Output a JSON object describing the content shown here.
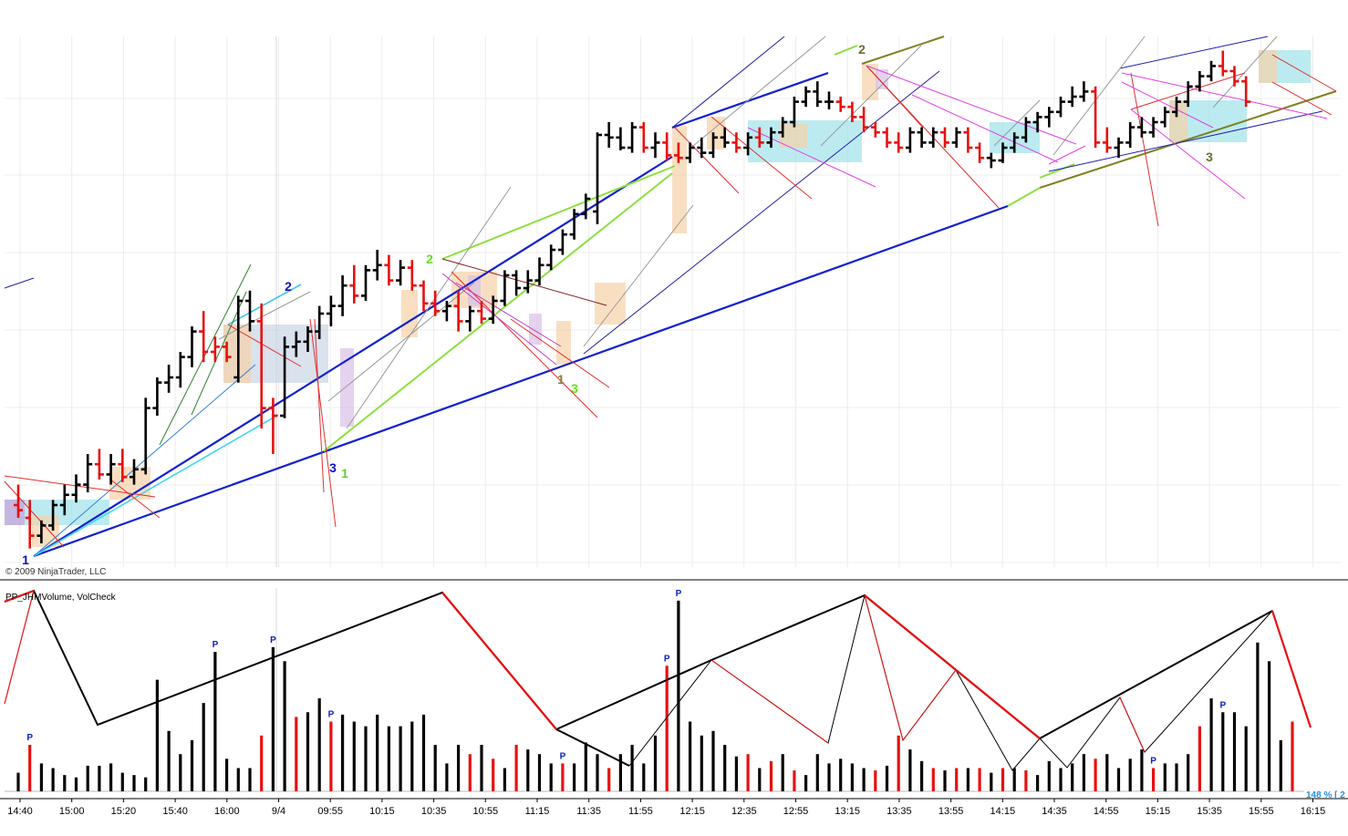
{
  "copyright": "© 2009 NinjaTrader, LLC",
  "indicator_label": "PP_JHMVolume, VolCheck",
  "zoom_label": "148 % [ 2",
  "pivot_labels": [
    {
      "text": "1",
      "color": "#1010c0"
    },
    {
      "text": "2",
      "color": "#1010c0"
    },
    {
      "text": "3",
      "color": "#1010c0"
    },
    {
      "text": "1",
      "color": "#66cc33"
    },
    {
      "text": "2",
      "color": "#66dd22"
    },
    {
      "text": "3",
      "color": "#66dd22"
    },
    {
      "text": "1",
      "color": "#808040"
    },
    {
      "text": "2",
      "color": "#6b6b35"
    },
    {
      "text": "3",
      "color": "#6b6b35"
    }
  ],
  "volume_marker": "P",
  "chart_data": {
    "type": "bar",
    "x_axis_labels": [
      "14:40",
      "15:00",
      "15:20",
      "15:40",
      "16:00",
      "9/4",
      "09:55",
      "10:15",
      "10:35",
      "10:55",
      "11:15",
      "11:35",
      "11:55",
      "12:15",
      "12:35",
      "12:55",
      "13:15",
      "13:35",
      "13:55",
      "14:15",
      "14:35",
      "14:55",
      "15:15",
      "15:35",
      "15:55",
      "16:15",
      "16:"
    ],
    "price_bars": [
      {
        "o": 20,
        "h": 28,
        "l": 15,
        "c": 18,
        "col": "r"
      },
      {
        "o": 15,
        "h": 22,
        "l": 3,
        "c": 8,
        "col": "r"
      },
      {
        "o": 8,
        "h": 14,
        "l": 5,
        "c": 12,
        "col": "k"
      },
      {
        "o": 12,
        "h": 22,
        "l": 10,
        "c": 20,
        "col": "k"
      },
      {
        "o": 20,
        "h": 28,
        "l": 16,
        "c": 24,
        "col": "k"
      },
      {
        "o": 24,
        "h": 32,
        "l": 21,
        "c": 28,
        "col": "k"
      },
      {
        "o": 28,
        "h": 40,
        "l": 25,
        "c": 36,
        "col": "k"
      },
      {
        "o": 36,
        "h": 42,
        "l": 30,
        "c": 32,
        "col": "r"
      },
      {
        "o": 32,
        "h": 40,
        "l": 28,
        "c": 36,
        "col": "k"
      },
      {
        "o": 36,
        "h": 42,
        "l": 29,
        "c": 31,
        "col": "r"
      },
      {
        "o": 31,
        "h": 38,
        "l": 28,
        "c": 34,
        "col": "k"
      },
      {
        "o": 34,
        "h": 62,
        "l": 32,
        "c": 58,
        "col": "k"
      },
      {
        "o": 58,
        "h": 70,
        "l": 55,
        "c": 68,
        "col": "k"
      },
      {
        "o": 68,
        "h": 75,
        "l": 64,
        "c": 70,
        "col": "k"
      },
      {
        "o": 70,
        "h": 80,
        "l": 66,
        "c": 78,
        "col": "k"
      },
      {
        "o": 78,
        "h": 90,
        "l": 74,
        "c": 88,
        "col": "k"
      },
      {
        "o": 88,
        "h": 96,
        "l": 76,
        "c": 80,
        "col": "r"
      },
      {
        "o": 80,
        "h": 86,
        "l": 76,
        "c": 82,
        "col": "r"
      },
      {
        "o": 82,
        "h": 84,
        "l": 76,
        "c": 78,
        "col": "r"
      },
      {
        "o": 70,
        "h": 102,
        "l": 68,
        "c": 100,
        "col": "k"
      },
      {
        "o": 100,
        "h": 104,
        "l": 88,
        "c": 92,
        "col": "k"
      },
      {
        "o": 92,
        "h": 99,
        "l": 50,
        "c": 58,
        "col": "r"
      },
      {
        "o": 58,
        "h": 62,
        "l": 40,
        "c": 55,
        "col": "r"
      },
      {
        "o": 55,
        "h": 86,
        "l": 54,
        "c": 82,
        "col": "k"
      },
      {
        "o": 82,
        "h": 88,
        "l": 78,
        "c": 84,
        "col": "k"
      },
      {
        "o": 84,
        "h": 90,
        "l": 80,
        "c": 88,
        "col": "k"
      },
      {
        "o": 88,
        "h": 98,
        "l": 85,
        "c": 95,
        "col": "k"
      },
      {
        "o": 95,
        "h": 102,
        "l": 90,
        "c": 98,
        "col": "k"
      },
      {
        "o": 98,
        "h": 110,
        "l": 94,
        "c": 106,
        "col": "k"
      },
      {
        "o": 106,
        "h": 114,
        "l": 99,
        "c": 102,
        "col": "r"
      },
      {
        "o": 102,
        "h": 114,
        "l": 100,
        "c": 112,
        "col": "k"
      },
      {
        "o": 112,
        "h": 120,
        "l": 108,
        "c": 114,
        "col": "k"
      },
      {
        "o": 114,
        "h": 118,
        "l": 106,
        "c": 108,
        "col": "r"
      },
      {
        "o": 108,
        "h": 116,
        "l": 106,
        "c": 113,
        "col": "k"
      },
      {
        "o": 113,
        "h": 116,
        "l": 104,
        "c": 106,
        "col": "r"
      },
      {
        "o": 106,
        "h": 108,
        "l": 96,
        "c": 99,
        "col": "r"
      },
      {
        "o": 99,
        "h": 104,
        "l": 94,
        "c": 96,
        "col": "r"
      },
      {
        "o": 96,
        "h": 100,
        "l": 92,
        "c": 98,
        "col": "k"
      },
      {
        "o": 98,
        "h": 104,
        "l": 88,
        "c": 92,
        "col": "r"
      },
      {
        "o": 92,
        "h": 98,
        "l": 88,
        "c": 96,
        "col": "k"
      },
      {
        "o": 96,
        "h": 100,
        "l": 91,
        "c": 93,
        "col": "r"
      },
      {
        "o": 93,
        "h": 102,
        "l": 91,
        "c": 100,
        "col": "k"
      },
      {
        "o": 100,
        "h": 112,
        "l": 98,
        "c": 110,
        "col": "k"
      },
      {
        "o": 110,
        "h": 112,
        "l": 102,
        "c": 105,
        "col": "k"
      },
      {
        "o": 105,
        "h": 112,
        "l": 103,
        "c": 108,
        "col": "k"
      },
      {
        "o": 108,
        "h": 117,
        "l": 106,
        "c": 114,
        "col": "k"
      },
      {
        "o": 114,
        "h": 122,
        "l": 112,
        "c": 120,
        "col": "k"
      },
      {
        "o": 120,
        "h": 128,
        "l": 118,
        "c": 126,
        "col": "k"
      },
      {
        "o": 126,
        "h": 136,
        "l": 124,
        "c": 134,
        "col": "k"
      },
      {
        "o": 134,
        "h": 142,
        "l": 132,
        "c": 140,
        "col": "k"
      },
      {
        "o": 135,
        "h": 166,
        "l": 130,
        "c": 165,
        "col": "k"
      },
      {
        "o": 165,
        "h": 170,
        "l": 160,
        "c": 164,
        "col": "k"
      },
      {
        "o": 164,
        "h": 168,
        "l": 159,
        "c": 160,
        "col": "k"
      },
      {
        "o": 160,
        "h": 170,
        "l": 158,
        "c": 168,
        "col": "k"
      },
      {
        "o": 168,
        "h": 170,
        "l": 158,
        "c": 160,
        "col": "r"
      },
      {
        "o": 160,
        "h": 166,
        "l": 156,
        "c": 162,
        "col": "k"
      },
      {
        "o": 162,
        "h": 166,
        "l": 155,
        "c": 157,
        "col": "r"
      },
      {
        "o": 157,
        "h": 162,
        "l": 154,
        "c": 156,
        "col": "r"
      },
      {
        "o": 156,
        "h": 162,
        "l": 154,
        "c": 160,
        "col": "k"
      },
      {
        "o": 160,
        "h": 164,
        "l": 156,
        "c": 158,
        "col": "k"
      },
      {
        "o": 158,
        "h": 166,
        "l": 156,
        "c": 164,
        "col": "k"
      },
      {
        "o": 164,
        "h": 168,
        "l": 160,
        "c": 162,
        "col": "k"
      },
      {
        "o": 162,
        "h": 166,
        "l": 158,
        "c": 160,
        "col": "r"
      },
      {
        "o": 160,
        "h": 166,
        "l": 157,
        "c": 164,
        "col": "k"
      },
      {
        "o": 164,
        "h": 168,
        "l": 160,
        "c": 162,
        "col": "r"
      },
      {
        "o": 162,
        "h": 168,
        "l": 160,
        "c": 166,
        "col": "k"
      },
      {
        "o": 166,
        "h": 172,
        "l": 164,
        "c": 170,
        "col": "k"
      },
      {
        "o": 170,
        "h": 180,
        "l": 168,
        "c": 178,
        "col": "k"
      },
      {
        "o": 178,
        "h": 184,
        "l": 176,
        "c": 182,
        "col": "k"
      },
      {
        "o": 182,
        "h": 186,
        "l": 176,
        "c": 178,
        "col": "k"
      },
      {
        "o": 178,
        "h": 182,
        "l": 175,
        "c": 178,
        "col": "k"
      },
      {
        "o": 178,
        "h": 180,
        "l": 174,
        "c": 176,
        "col": "r"
      },
      {
        "o": 176,
        "h": 178,
        "l": 170,
        "c": 172,
        "col": "r"
      },
      {
        "o": 172,
        "h": 176,
        "l": 166,
        "c": 168,
        "col": "r"
      },
      {
        "o": 168,
        "h": 170,
        "l": 164,
        "c": 166,
        "col": "r"
      },
      {
        "o": 166,
        "h": 168,
        "l": 160,
        "c": 162,
        "col": "r"
      },
      {
        "o": 162,
        "h": 166,
        "l": 158,
        "c": 160,
        "col": "r"
      },
      {
        "o": 160,
        "h": 168,
        "l": 158,
        "c": 166,
        "col": "k"
      },
      {
        "o": 166,
        "h": 168,
        "l": 160,
        "c": 162,
        "col": "k"
      },
      {
        "o": 162,
        "h": 168,
        "l": 160,
        "c": 166,
        "col": "k"
      },
      {
        "o": 166,
        "h": 168,
        "l": 160,
        "c": 162,
        "col": "r"
      },
      {
        "o": 162,
        "h": 168,
        "l": 160,
        "c": 166,
        "col": "k"
      },
      {
        "o": 166,
        "h": 168,
        "l": 158,
        "c": 160,
        "col": "r"
      },
      {
        "o": 160,
        "h": 162,
        "l": 154,
        "c": 156,
        "col": "r"
      },
      {
        "o": 156,
        "h": 158,
        "l": 152,
        "c": 155,
        "col": "k"
      },
      {
        "o": 155,
        "h": 162,
        "l": 154,
        "c": 160,
        "col": "k"
      },
      {
        "o": 160,
        "h": 166,
        "l": 158,
        "c": 164,
        "col": "k"
      },
      {
        "o": 164,
        "h": 172,
        "l": 162,
        "c": 170,
        "col": "k"
      },
      {
        "o": 170,
        "h": 174,
        "l": 166,
        "c": 172,
        "col": "k"
      },
      {
        "o": 172,
        "h": 176,
        "l": 168,
        "c": 174,
        "col": "k"
      },
      {
        "o": 174,
        "h": 180,
        "l": 172,
        "c": 178,
        "col": "k"
      },
      {
        "o": 178,
        "h": 184,
        "l": 176,
        "c": 180,
        "col": "k"
      },
      {
        "o": 180,
        "h": 186,
        "l": 178,
        "c": 182,
        "col": "k"
      },
      {
        "o": 182,
        "h": 184,
        "l": 160,
        "c": 162,
        "col": "r"
      },
      {
        "o": 162,
        "h": 168,
        "l": 158,
        "c": 160,
        "col": "r"
      },
      {
        "o": 160,
        "h": 164,
        "l": 156,
        "c": 162,
        "col": "k"
      },
      {
        "o": 162,
        "h": 170,
        "l": 160,
        "c": 168,
        "col": "k"
      },
      {
        "o": 168,
        "h": 172,
        "l": 164,
        "c": 166,
        "col": "k"
      },
      {
        "o": 166,
        "h": 172,
        "l": 164,
        "c": 170,
        "col": "k"
      },
      {
        "o": 170,
        "h": 176,
        "l": 168,
        "c": 174,
        "col": "k"
      },
      {
        "o": 174,
        "h": 180,
        "l": 172,
        "c": 178,
        "col": "k"
      },
      {
        "o": 178,
        "h": 186,
        "l": 176,
        "c": 184,
        "col": "k"
      },
      {
        "o": 184,
        "h": 190,
        "l": 182,
        "c": 188,
        "col": "k"
      },
      {
        "o": 188,
        "h": 194,
        "l": 186,
        "c": 192,
        "col": "k"
      },
      {
        "o": 192,
        "h": 198,
        "l": 188,
        "c": 190,
        "col": "r"
      },
      {
        "o": 190,
        "h": 192,
        "l": 184,
        "c": 186,
        "col": "r"
      },
      {
        "o": 186,
        "h": 188,
        "l": 176,
        "c": 178,
        "col": "r"
      }
    ],
    "volume_values": [
      8,
      20,
      12,
      10,
      7,
      6,
      11,
      11,
      12,
      8,
      7,
      6,
      48,
      26,
      16,
      22,
      38,
      60,
      14,
      10,
      10,
      24,
      62,
      56,
      32,
      34,
      40,
      30,
      33,
      30,
      28,
      33,
      28,
      28,
      30,
      33,
      20,
      12,
      20,
      16,
      20,
      14,
      10,
      20,
      18,
      16,
      12,
      12,
      12,
      21,
      16,
      10,
      16,
      20,
      12,
      24,
      54,
      82,
      30,
      24,
      26,
      20,
      15,
      16,
      10,
      13,
      16,
      9,
      7,
      16,
      12,
      14,
      12,
      10,
      9,
      11,
      24,
      18,
      13,
      10,
      9,
      10,
      10,
      10,
      8,
      10,
      10,
      9,
      7,
      13,
      10,
      12,
      16,
      14,
      16,
      10,
      14,
      18,
      10,
      12,
      12,
      16,
      28,
      40,
      34,
      34,
      28,
      64,
      56,
      22,
      30
    ]
  }
}
